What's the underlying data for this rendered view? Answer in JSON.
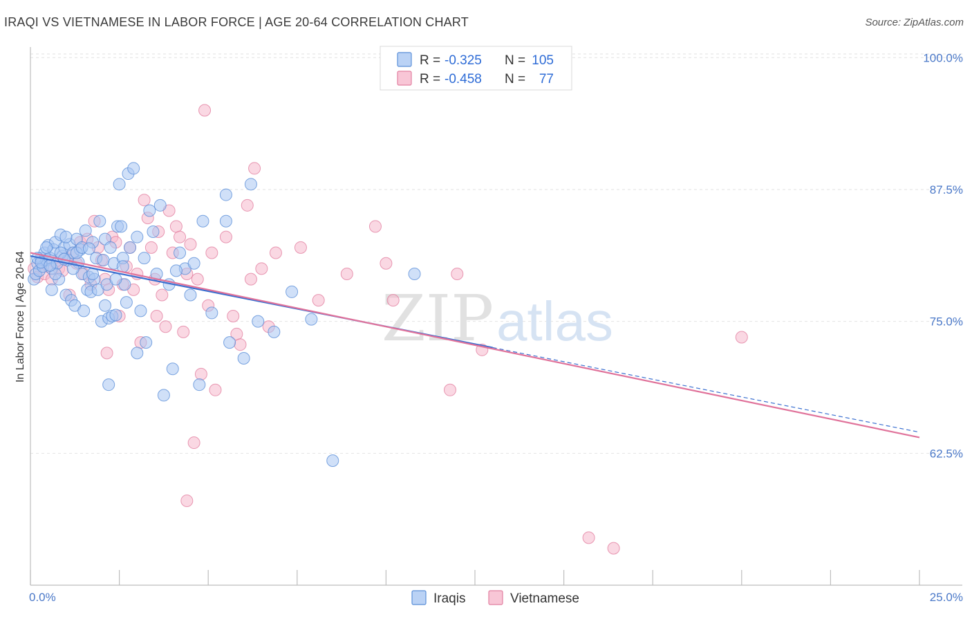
{
  "title": "IRAQI VS VIETNAMESE IN LABOR FORCE | AGE 20-64 CORRELATION CHART",
  "source": "Source: ZipAtlas.com",
  "watermark": {
    "zip": "ZIP",
    "atlas": "atlas"
  },
  "colors": {
    "iraqis_fill": "#a9c7f2",
    "iraqis_stroke": "#5b8fd8",
    "iraqis_line": "#3a6fd0",
    "vietnamese_fill": "#f6b8cc",
    "vietnamese_stroke": "#e27fa0",
    "vietnamese_line": "#e0729a",
    "tick_text": "#4a78c8",
    "grid": "#e2e2e2"
  },
  "legend": {
    "rows": [
      {
        "series": "Iraqis",
        "r_label": "R =",
        "r_value": "-0.325",
        "n_label": "N =",
        "n_value": "105"
      },
      {
        "series": "Vietnamese",
        "r_label": "R =",
        "r_value": "-0.458",
        "n_label": "N =",
        "n_value": "77"
      }
    ]
  },
  "chart_data": {
    "type": "scatter",
    "title": "IRAQI VS VIETNAMESE IN LABOR FORCE | AGE 20-64 CORRELATION CHART",
    "xlabel": "",
    "ylabel": "In Labor Force | Age 20-64",
    "xlim": [
      0,
      25
    ],
    "ylim": [
      50,
      101
    ],
    "x_tick_labels": [
      "0.0%",
      "25.0%"
    ],
    "y_ticks": [
      62.5,
      75.0,
      87.5,
      100.0
    ],
    "y_tick_labels": [
      "62.5%",
      "75.0%",
      "87.5%",
      "100.0%"
    ],
    "grid": true,
    "series": [
      {
        "name": "Iraqis",
        "trend": {
          "x": [
            0,
            25
          ],
          "y": [
            81.2,
            64.5
          ]
        },
        "points": [
          [
            0.1,
            79.0
          ],
          [
            0.15,
            79.5
          ],
          [
            0.2,
            80.5
          ],
          [
            0.25,
            79.8
          ],
          [
            0.3,
            81.0
          ],
          [
            0.35,
            80.2
          ],
          [
            0.4,
            81.5
          ],
          [
            0.45,
            80.8
          ],
          [
            0.5,
            82.2
          ],
          [
            0.55,
            81.0
          ],
          [
            0.6,
            80.0
          ],
          [
            0.65,
            81.8
          ],
          [
            0.7,
            82.5
          ],
          [
            0.75,
            80.5
          ],
          [
            0.8,
            79.0
          ],
          [
            0.85,
            83.2
          ],
          [
            0.9,
            81.2
          ],
          [
            0.95,
            82.0
          ],
          [
            1.0,
            77.5
          ],
          [
            1.05,
            80.8
          ],
          [
            1.1,
            82.3
          ],
          [
            1.15,
            77.0
          ],
          [
            1.2,
            81.5
          ],
          [
            1.25,
            76.5
          ],
          [
            1.3,
            82.8
          ],
          [
            1.35,
            80.6
          ],
          [
            1.4,
            81.8
          ],
          [
            1.45,
            79.5
          ],
          [
            1.5,
            76.0
          ],
          [
            1.55,
            83.6
          ],
          [
            1.6,
            78.0
          ],
          [
            1.65,
            79.2
          ],
          [
            1.7,
            77.8
          ],
          [
            1.75,
            82.5
          ],
          [
            1.8,
            79.0
          ],
          [
            1.85,
            81.0
          ],
          [
            1.9,
            78.0
          ],
          [
            1.95,
            84.5
          ],
          [
            2.0,
            75.0
          ],
          [
            2.05,
            80.8
          ],
          [
            2.1,
            82.8
          ],
          [
            2.15,
            78.5
          ],
          [
            2.2,
            75.3
          ],
          [
            2.25,
            82.0
          ],
          [
            2.3,
            75.5
          ],
          [
            2.35,
            80.5
          ],
          [
            2.4,
            75.6
          ],
          [
            2.45,
            84.0
          ],
          [
            2.5,
            88.0
          ],
          [
            2.55,
            84.0
          ],
          [
            2.6,
            81.0
          ],
          [
            2.65,
            78.5
          ],
          [
            2.7,
            76.8
          ],
          [
            2.75,
            89.0
          ],
          [
            2.8,
            82.0
          ],
          [
            2.9,
            89.5
          ],
          [
            3.0,
            72.0
          ],
          [
            3.1,
            76.0
          ],
          [
            3.2,
            81.0
          ],
          [
            3.35,
            85.5
          ],
          [
            3.45,
            83.5
          ],
          [
            3.55,
            79.5
          ],
          [
            3.65,
            86.0
          ],
          [
            3.75,
            68.0
          ],
          [
            3.9,
            78.5
          ],
          [
            4.0,
            70.5
          ],
          [
            4.2,
            81.5
          ],
          [
            4.35,
            80.0
          ],
          [
            4.5,
            77.5
          ],
          [
            4.6,
            80.5
          ],
          [
            4.75,
            69.0
          ],
          [
            4.85,
            84.5
          ],
          [
            5.5,
            87.0
          ],
          [
            5.5,
            84.5
          ],
          [
            5.6,
            73.0
          ],
          [
            6.0,
            71.5
          ],
          [
            6.4,
            75.0
          ],
          [
            6.85,
            74.0
          ],
          [
            7.35,
            77.8
          ],
          [
            7.9,
            75.2
          ],
          [
            8.5,
            61.8
          ],
          [
            10.8,
            79.5
          ],
          [
            2.2,
            69.0
          ],
          [
            0.2,
            81.0
          ],
          [
            0.6,
            78.0
          ],
          [
            1.0,
            83.0
          ],
          [
            1.3,
            81.5
          ],
          [
            2.1,
            76.5
          ],
          [
            0.45,
            82.0
          ],
          [
            0.7,
            79.5
          ],
          [
            1.2,
            80.0
          ],
          [
            1.75,
            79.5
          ],
          [
            3.25,
            73.0
          ],
          [
            6.2,
            88.0
          ],
          [
            0.3,
            80.6
          ],
          [
            0.85,
            81.5
          ],
          [
            1.45,
            82.0
          ],
          [
            2.4,
            79.0
          ],
          [
            3.0,
            83.0
          ],
          [
            4.1,
            79.8
          ],
          [
            5.1,
            75.8
          ],
          [
            0.55,
            80.3
          ],
          [
            0.95,
            80.9
          ],
          [
            1.65,
            81.9
          ],
          [
            2.6,
            80.2
          ]
        ]
      },
      {
        "name": "Vietnamese",
        "trend": {
          "x": [
            0,
            25
          ],
          "y": [
            81.5,
            64.0
          ]
        },
        "points": [
          [
            0.1,
            80.0
          ],
          [
            0.2,
            79.2
          ],
          [
            0.3,
            80.8
          ],
          [
            0.4,
            79.5
          ],
          [
            0.5,
            80.2
          ],
          [
            0.6,
            79.0
          ],
          [
            0.7,
            80.6
          ],
          [
            0.8,
            80.0
          ],
          [
            0.9,
            79.8
          ],
          [
            1.0,
            81.0
          ],
          [
            1.1,
            77.5
          ],
          [
            1.2,
            81.5
          ],
          [
            1.3,
            80.5
          ],
          [
            1.4,
            82.5
          ],
          [
            1.5,
            79.5
          ],
          [
            1.6,
            82.8
          ],
          [
            1.7,
            78.5
          ],
          [
            1.8,
            84.5
          ],
          [
            1.9,
            82.0
          ],
          [
            2.0,
            80.8
          ],
          [
            2.1,
            79.0
          ],
          [
            2.2,
            78.0
          ],
          [
            2.3,
            83.0
          ],
          [
            2.4,
            82.5
          ],
          [
            2.5,
            75.5
          ],
          [
            2.6,
            78.5
          ],
          [
            2.7,
            80.2
          ],
          [
            2.8,
            82.0
          ],
          [
            2.9,
            78.0
          ],
          [
            3.0,
            79.5
          ],
          [
            3.1,
            73.0
          ],
          [
            3.2,
            86.5
          ],
          [
            3.3,
            84.8
          ],
          [
            3.4,
            82.0
          ],
          [
            3.5,
            79.0
          ],
          [
            3.6,
            83.5
          ],
          [
            3.7,
            77.5
          ],
          [
            3.8,
            74.5
          ],
          [
            3.9,
            85.5
          ],
          [
            4.0,
            81.5
          ],
          [
            4.1,
            84.0
          ],
          [
            4.2,
            83.0
          ],
          [
            4.3,
            74.0
          ],
          [
            4.4,
            79.5
          ],
          [
            4.5,
            82.3
          ],
          [
            4.6,
            63.5
          ],
          [
            4.7,
            79.0
          ],
          [
            4.8,
            70.0
          ],
          [
            5.0,
            76.5
          ],
          [
            5.1,
            81.5
          ],
          [
            5.2,
            68.5
          ],
          [
            5.5,
            83.0
          ],
          [
            5.7,
            75.5
          ],
          [
            5.8,
            73.8
          ],
          [
            5.9,
            72.8
          ],
          [
            6.1,
            86.0
          ],
          [
            6.2,
            79.0
          ],
          [
            6.3,
            89.5
          ],
          [
            6.5,
            80.0
          ],
          [
            6.7,
            74.5
          ],
          [
            6.9,
            81.5
          ],
          [
            7.6,
            82.0
          ],
          [
            8.1,
            77.0
          ],
          [
            8.9,
            79.5
          ],
          [
            9.7,
            84.0
          ],
          [
            10.0,
            80.5
          ],
          [
            10.2,
            77.0
          ],
          [
            11.8,
            68.5
          ],
          [
            12.0,
            79.5
          ],
          [
            12.7,
            72.3
          ],
          [
            15.7,
            54.5
          ],
          [
            16.4,
            53.5
          ],
          [
            20.0,
            73.5
          ],
          [
            4.4,
            58.0
          ],
          [
            4.9,
            95.0
          ],
          [
            2.15,
            72.0
          ],
          [
            3.55,
            75.5
          ]
        ]
      }
    ]
  },
  "bottom_legend": {
    "items": [
      "Iraqis",
      "Vietnamese"
    ]
  }
}
